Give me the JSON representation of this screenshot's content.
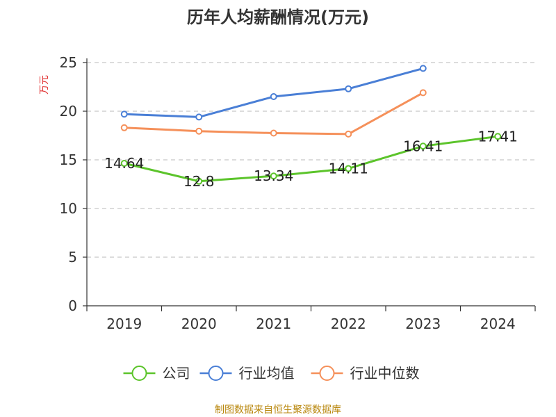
{
  "chart_data": {
    "type": "line",
    "title": "历年人均薪酬情况(万元)",
    "ylabel": "万元",
    "xlabel": "",
    "categories": [
      "2019",
      "2020",
      "2021",
      "2022",
      "2023",
      "2024"
    ],
    "ylim": [
      0,
      25
    ],
    "yticks": [
      0,
      5,
      10,
      15,
      20,
      25
    ],
    "grid": true,
    "legend_position": "bottom",
    "series": [
      {
        "name": "公司",
        "color": "#5cc42b",
        "values": [
          14.64,
          12.8,
          13.34,
          14.11,
          16.41,
          17.41
        ],
        "labels": [
          "14.64",
          "12.8",
          "13.34",
          "14.11",
          "16.41",
          "17.41"
        ]
      },
      {
        "name": "行业均值",
        "color": "#4a7fd6",
        "values": [
          19.7,
          19.4,
          21.5,
          22.3,
          24.4,
          null
        ]
      },
      {
        "name": "行业中位数",
        "color": "#f5905a",
        "values": [
          18.3,
          17.95,
          17.75,
          17.65,
          21.9,
          null
        ]
      }
    ],
    "source": "制图数据来自恒生聚源数据库"
  }
}
